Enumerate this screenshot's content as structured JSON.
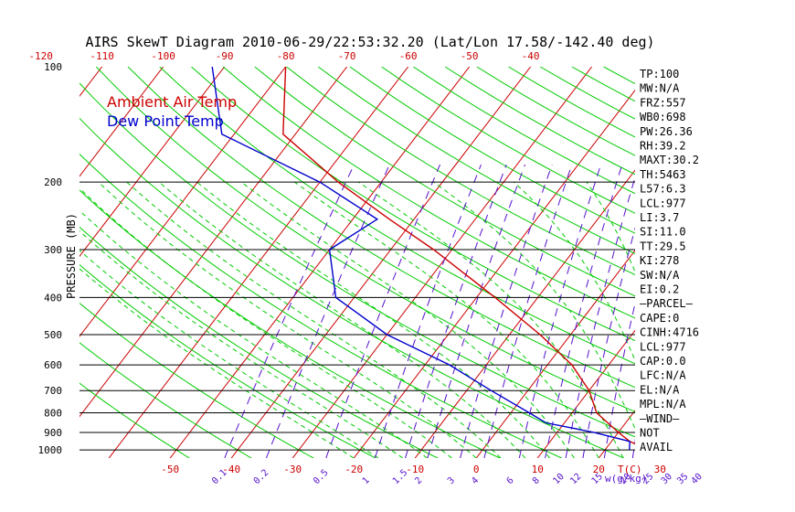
{
  "chart_data": {
    "type": "line",
    "title": "AIRS SkewT Diagram 2010-06-29/22:53:32.20 (Lat/Lon 17.58/-142.40 deg)",
    "ylabel": "PRESSURE (MB)",
    "xlabel": "T(C)",
    "mixing_ratio_unit": "w(g/kg)",
    "legend": [
      {
        "name": "Ambient Air Temp",
        "color": "#cc0000"
      },
      {
        "name": "Dew Point Temp",
        "color": "#0000cc"
      }
    ],
    "legend_placement": "top-left",
    "grid": true,
    "y_scale": "log",
    "ylim": [
      1050,
      100
    ],
    "pressure_ticks": [
      100,
      200,
      300,
      400,
      500,
      600,
      700,
      800,
      900,
      1000
    ],
    "isobars": [
      200,
      300,
      400,
      500,
      600,
      700,
      800,
      900,
      1000
    ],
    "top_temp_ticks": [
      -120,
      -110,
      -100,
      -90,
      -80,
      -70,
      -60,
      -50,
      -40
    ],
    "bottom_temp_ticks": [
      -50,
      -40,
      -30,
      -20,
      -10,
      0,
      10,
      20,
      30
    ],
    "mixing_ratio_ticks": [
      "0.1",
      "0.2",
      "0.5",
      "1",
      "1.5",
      "2",
      "3",
      "4",
      "6",
      "8",
      "10",
      "12",
      "15",
      "20",
      "25",
      "30",
      "35",
      "40"
    ],
    "series": [
      {
        "name": "Ambient Air Temp",
        "color": "#cc0000",
        "points": [
          {
            "p": 100,
            "t": -80
          },
          {
            "p": 150,
            "t": -72
          },
          {
            "p": 200,
            "t": -57
          },
          {
            "p": 250,
            "t": -44
          },
          {
            "p": 300,
            "t": -33
          },
          {
            "p": 400,
            "t": -17
          },
          {
            "p": 500,
            "t": -5
          },
          {
            "p": 600,
            "t": 4
          },
          {
            "p": 700,
            "t": 10
          },
          {
            "p": 800,
            "t": 14
          },
          {
            "p": 900,
            "t": 20
          },
          {
            "p": 950,
            "t": 23
          },
          {
            "p": 1000,
            "t": 27
          }
        ]
      },
      {
        "name": "Dew Point Temp",
        "color": "#0000cc",
        "points": [
          {
            "p": 100,
            "t": -92
          },
          {
            "p": 150,
            "t": -82
          },
          {
            "p": 200,
            "t": -60
          },
          {
            "p": 250,
            "t": -46
          },
          {
            "p": 300,
            "t": -50
          },
          {
            "p": 400,
            "t": -43
          },
          {
            "p": 500,
            "t": -30
          },
          {
            "p": 600,
            "t": -16
          },
          {
            "p": 700,
            "t": -6
          },
          {
            "p": 800,
            "t": 3
          },
          {
            "p": 850,
            "t": 7
          },
          {
            "p": 900,
            "t": 16
          },
          {
            "p": 950,
            "t": 23
          },
          {
            "p": 1000,
            "t": 24
          }
        ]
      }
    ]
  },
  "indices": [
    "TP:100",
    "MW:N/A",
    "FRZ:557",
    "WB0:698",
    "PW:26.36",
    "RH:39.2",
    "MAXT:30.2",
    "TH:5463",
    "L57:6.3",
    "LCL:977",
    "LI:3.7",
    "SI:11.0",
    "TT:29.5",
    "KI:278",
    "SW:N/A",
    "EI:0.2",
    "—PARCEL—",
    "CAPE:0",
    "CINH:4716",
    "LCL:977",
    "CAP:0.0",
    "LFC:N/A",
    "EL:N/A",
    "MPL:N/A",
    "—WIND—",
    "NOT",
    "AVAIL"
  ],
  "colors": {
    "isotherm": "#cc0000",
    "dry_adiabat": "#00cc00",
    "moist_adiabat": "#00cc00",
    "mixing_ratio": "#5511cc",
    "isobar": "#000000",
    "tick_label": "#cc0000",
    "mixing_label": "#5511cc"
  }
}
